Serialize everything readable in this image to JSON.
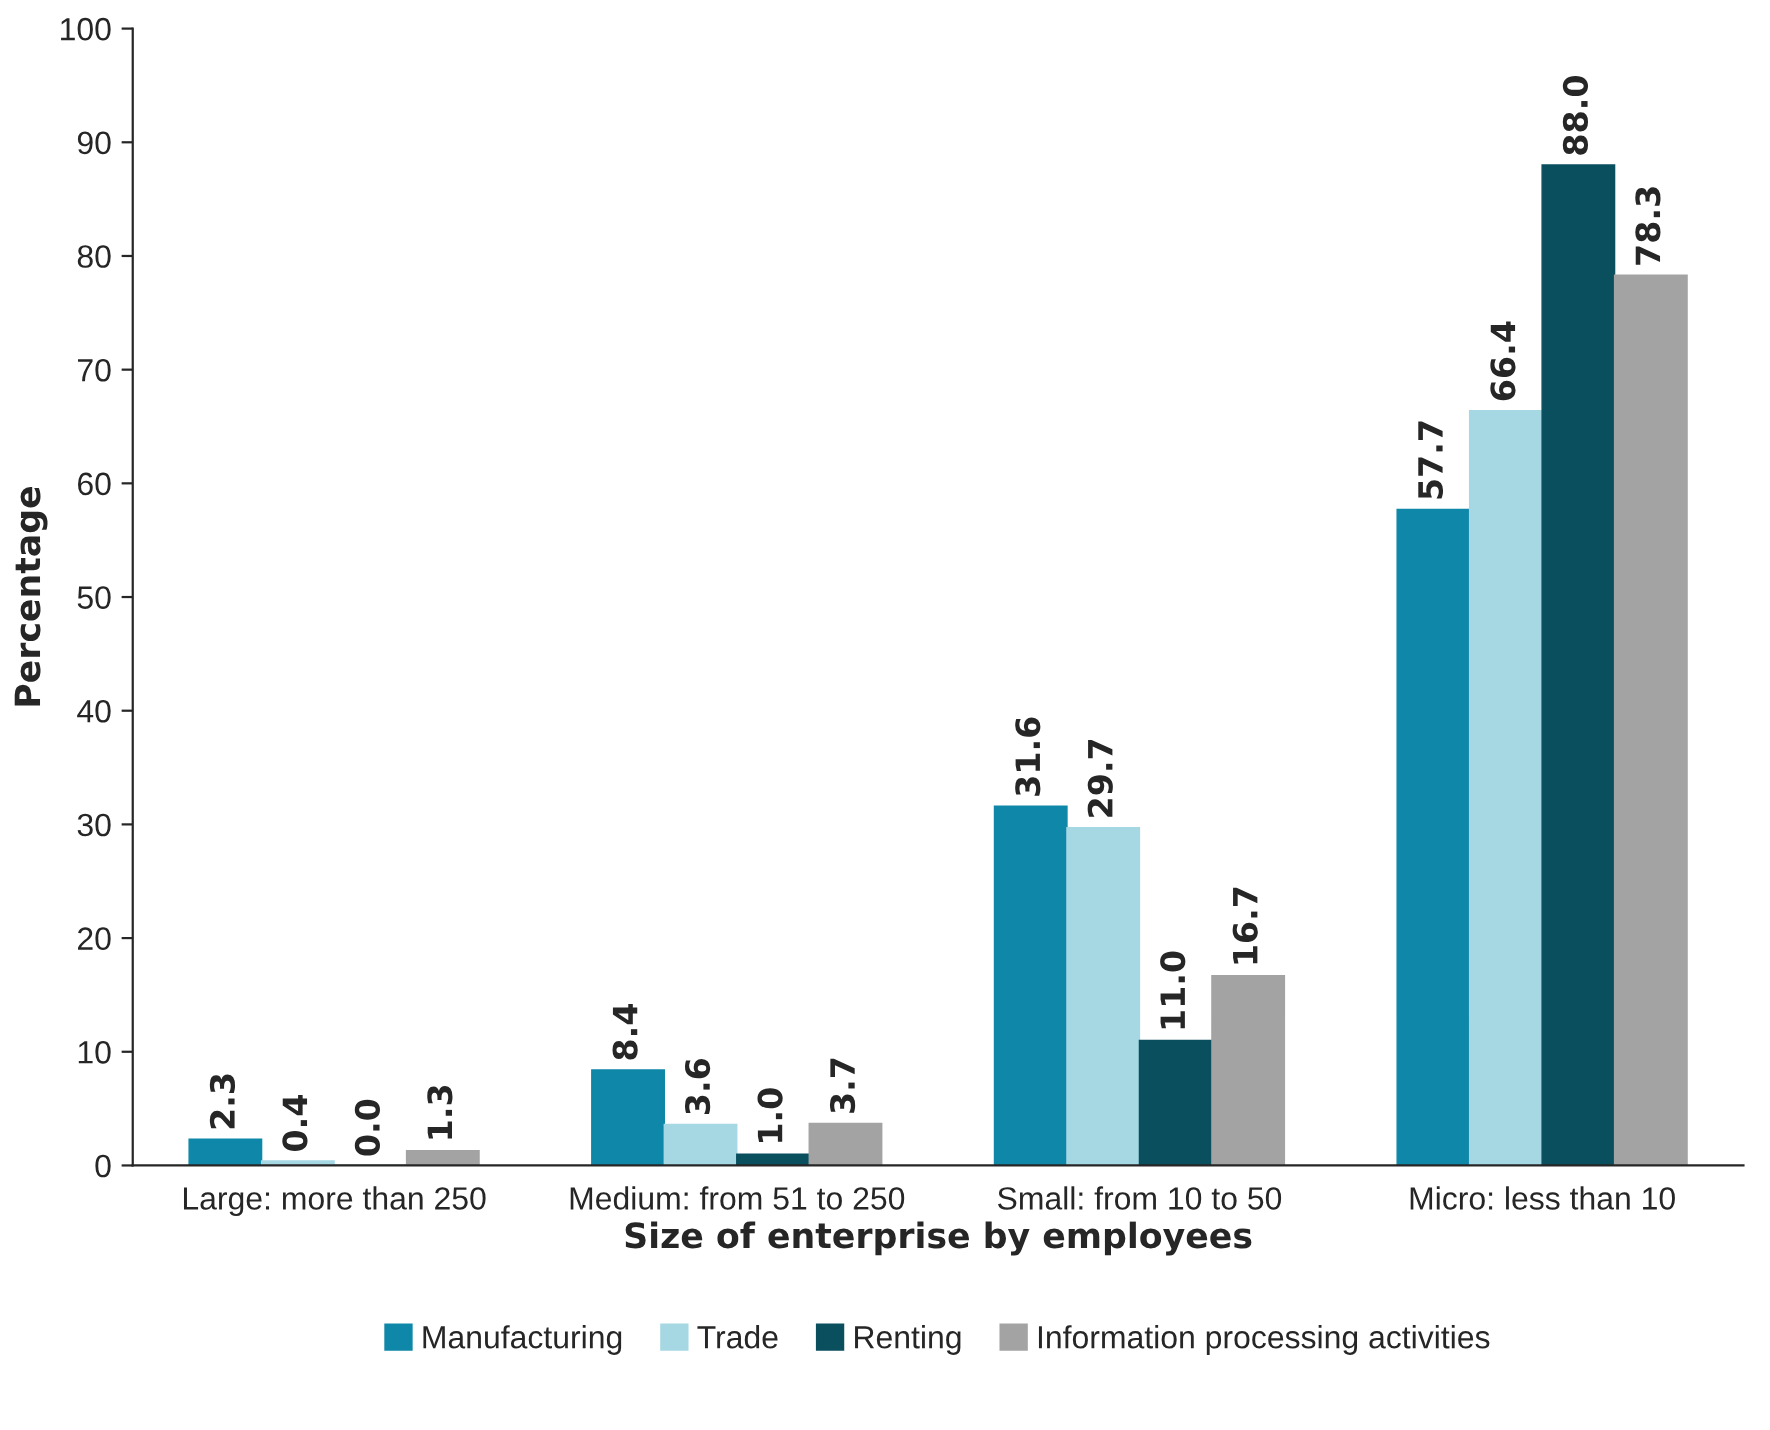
{
  "chart_data": {
    "type": "bar",
    "xlabel": "Size of enterprise by employees",
    "ylabel": "Percentage",
    "categories": [
      "Large: more than 250",
      "Medium: from 51 to 250",
      "Small: from 10 to 50",
      "Micro: less than 10"
    ],
    "series": [
      {
        "name": "Manufacturing",
        "color": "#0f87a8",
        "values": [
          2.3,
          8.4,
          31.6,
          57.7
        ],
        "value_labels": [
          "2.3",
          "8.4",
          "31.6",
          "57.7"
        ]
      },
      {
        "name": "Trade",
        "color": "#a6d8e4",
        "values": [
          0.4,
          3.6,
          29.7,
          66.4
        ],
        "value_labels": [
          "0.4",
          "3.6",
          "29.7",
          "66.4"
        ]
      },
      {
        "name": "Renting",
        "color": "#0a4f5e",
        "values": [
          0.0,
          1.0,
          11.0,
          88.0
        ],
        "value_labels": [
          "0.0",
          "1.0",
          "11.0",
          "88.0"
        ]
      },
      {
        "name": "Information processing activities",
        "color": "#a3a3a3",
        "values": [
          1.3,
          3.7,
          16.7,
          78.3
        ],
        "value_labels": [
          "1.3",
          "3.7",
          "16.7",
          "78.3"
        ]
      }
    ],
    "ylim": [
      0,
      100
    ],
    "yticks": [
      0,
      10,
      20,
      30,
      40,
      50,
      60,
      70,
      80,
      90,
      100
    ],
    "grid": false,
    "legend": "bottom"
  }
}
